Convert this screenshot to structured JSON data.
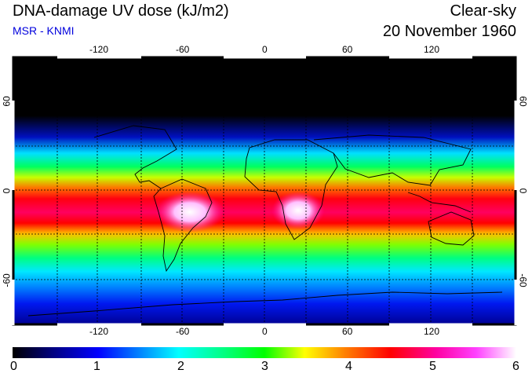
{
  "header": {
    "title": "DNA-damage UV dose (kJ/m2)",
    "subtitle": "MSR - KNMI",
    "condition": "Clear-sky",
    "date": "20 November 1960"
  },
  "colors": {
    "subtitle": "#0000dd",
    "scale": [
      "#000000",
      "#000080",
      "#0000ff",
      "#00c8ff",
      "#00ffc8",
      "#00ff00",
      "#ffff00",
      "#ff8000",
      "#ff0000",
      "#ff00a0",
      "#ff60ff",
      "#ffffff"
    ]
  },
  "map": {
    "lon_ticks": [
      "-120",
      "-60",
      "0",
      "60",
      "120"
    ],
    "lat_ticks": [
      "60",
      "0",
      "-60"
    ]
  },
  "colorbar": {
    "labels": [
      "0",
      "1",
      "2",
      "3",
      "4",
      "5",
      "6"
    ]
  }
}
